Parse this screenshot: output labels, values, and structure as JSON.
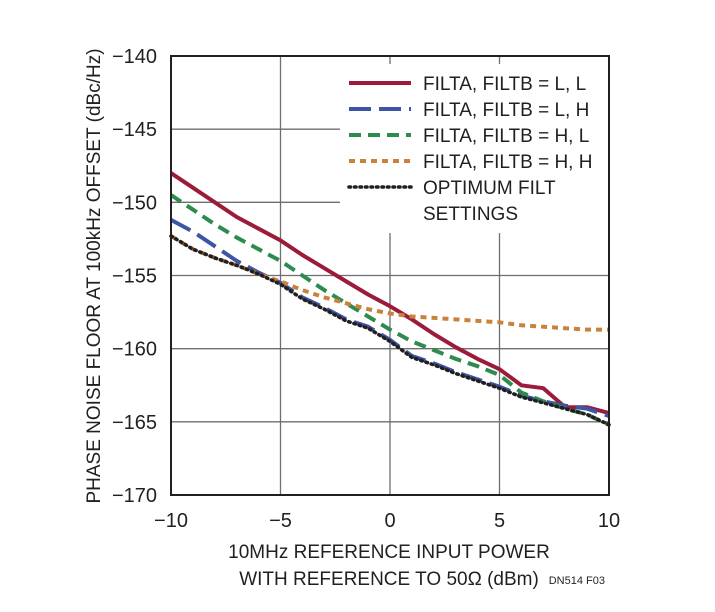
{
  "figure_id": "DN514 F03",
  "chart_data": {
    "type": "line",
    "title": "",
    "xlabel_lines": [
      "10MHz REFERENCE INPUT POWER",
      "WITH REFERENCE TO 50Ω (dBm)"
    ],
    "ylabel": "PHASE NOISE FLOOR AT 100kHz OFFSET (dBc/Hz)",
    "xlim": [
      -10,
      10
    ],
    "ylim": [
      -170,
      -140
    ],
    "xticks": [
      -10,
      -5,
      0,
      5,
      10
    ],
    "xtick_labels": [
      "−10",
      "−5",
      "0",
      "5",
      "10"
    ],
    "yticks": [
      -140,
      -145,
      -150,
      -155,
      -160,
      -165,
      -170
    ],
    "ytick_labels": [
      "−140",
      "−145",
      "−150",
      "−155",
      "−160",
      "−165",
      "−170"
    ],
    "grid": true,
    "legend_position": "top-right",
    "series": [
      {
        "name": "FILTA, FILTB = L, L",
        "color": "#9b1b3a",
        "style": "solid",
        "x": [
          -10,
          -9,
          -8,
          -7,
          -6,
          -5,
          -4,
          -3,
          -2,
          -1,
          0,
          1,
          2,
          3,
          4,
          5,
          6,
          7,
          8,
          9,
          10
        ],
        "y": [
          -148.0,
          -149.0,
          -150.0,
          -151.0,
          -151.8,
          -152.6,
          -153.6,
          -154.5,
          -155.4,
          -156.3,
          -157.1,
          -158.0,
          -159.0,
          -159.9,
          -160.7,
          -161.4,
          -162.5,
          -162.7,
          -164.0,
          -164.0,
          -164.4
        ]
      },
      {
        "name": "FILTA, FILTB = L, H",
        "color": "#3d55a5",
        "style": "longdash",
        "x": [
          -10,
          -9,
          -8,
          -7,
          -6,
          -5,
          -4,
          -3,
          -2,
          -1,
          0,
          1,
          2,
          3,
          4,
          5,
          6,
          7,
          8,
          9,
          10
        ],
        "y": [
          -151.2,
          -152.0,
          -153.0,
          -154.0,
          -154.8,
          -155.5,
          -156.5,
          -157.2,
          -158.0,
          -158.5,
          -159.4,
          -160.5,
          -161.0,
          -161.6,
          -162.1,
          -162.6,
          -163.2,
          -163.6,
          -163.9,
          -164.1,
          -164.6
        ]
      },
      {
        "name": "FILTA, FILTB = H, L",
        "color": "#2e8b4e",
        "style": "dash",
        "x": [
          -10,
          -9,
          -8,
          -7,
          -6,
          -5,
          -4,
          -3,
          -2,
          -1,
          0,
          1,
          2,
          3,
          4,
          5,
          6,
          7,
          8,
          9,
          10
        ],
        "y": [
          -149.5,
          -150.5,
          -151.5,
          -152.4,
          -153.2,
          -154.0,
          -155.0,
          -156.0,
          -156.9,
          -157.8,
          -158.7,
          -159.5,
          -160.1,
          -160.7,
          -161.2,
          -161.8,
          -163.0,
          -163.6,
          -164.1,
          -164.5,
          -165.2
        ]
      },
      {
        "name": "FILTA, FILTB = H, H",
        "color": "#c8823a",
        "style": "shortdash",
        "x": [
          -10,
          -9,
          -8,
          -7,
          -6,
          -5,
          -4,
          -3,
          -2,
          -1,
          0,
          1,
          2,
          3,
          4,
          5,
          6,
          7,
          8,
          9,
          10
        ],
        "y": [
          -152.3,
          -153.2,
          -153.8,
          -154.3,
          -154.9,
          -155.4,
          -156.0,
          -156.5,
          -156.9,
          -157.3,
          -157.6,
          -157.8,
          -157.9,
          -158.0,
          -158.1,
          -158.2,
          -158.4,
          -158.5,
          -158.6,
          -158.7,
          -158.7
        ]
      },
      {
        "name": "OPTIMUM FILT SETTINGS",
        "name_lines": [
          "OPTIMUM FILT",
          "SETTINGS"
        ],
        "color": "#231f20",
        "style": "dotted",
        "x": [
          -10,
          -9,
          -8,
          -7,
          -6,
          -5,
          -4,
          -3,
          -2,
          -1,
          0,
          1,
          2,
          3,
          4,
          5,
          6,
          7,
          8,
          9,
          10
        ],
        "y": [
          -152.3,
          -153.2,
          -153.8,
          -154.3,
          -154.9,
          -155.6,
          -156.6,
          -157.3,
          -158.1,
          -158.6,
          -159.5,
          -160.6,
          -161.1,
          -161.7,
          -162.2,
          -162.7,
          -163.3,
          -163.7,
          -164.1,
          -164.5,
          -165.2
        ]
      }
    ]
  }
}
